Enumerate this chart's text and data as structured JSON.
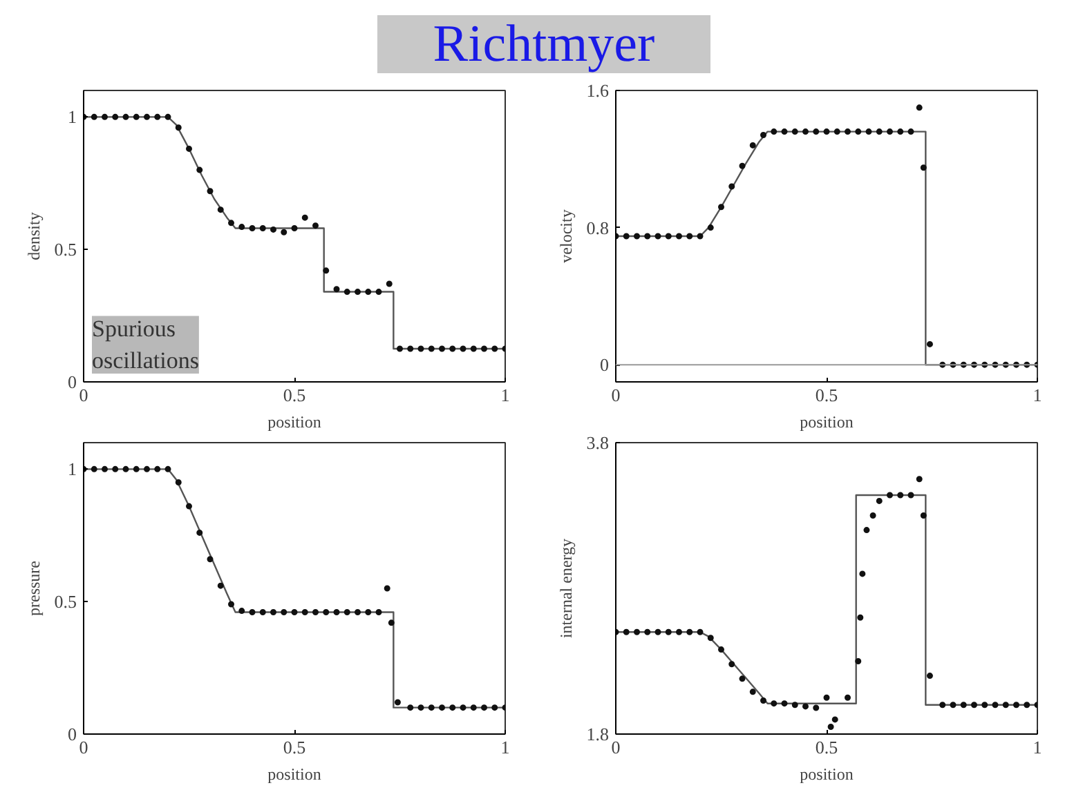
{
  "chart_data": [
    {
      "type": "line",
      "title": "Richtmyer",
      "xlabel": "position",
      "ylabel": "density",
      "xlim": [
        0,
        1
      ],
      "ylim": [
        0,
        1.1
      ],
      "xticks": [
        0,
        0.5,
        1
      ],
      "yticks": [
        0,
        0.5,
        1
      ],
      "grid": false,
      "annotations": [
        "Spurious oscillations"
      ],
      "series": [
        {
          "color": "#555555",
          "x": [
            0,
            0.2,
            0.22,
            0.25,
            0.28,
            0.31,
            0.34,
            0.36,
            0.57,
            0.57,
            0.735,
            0.735,
            1
          ],
          "values": [
            1,
            1,
            0.97,
            0.88,
            0.78,
            0.69,
            0.62,
            0.58,
            0.58,
            0.34,
            0.34,
            0.125,
            0.125
          ]
        },
        {
          "type": "scatter",
          "marker": "circle",
          "color": "#111111",
          "x": [
            0,
            0.025,
            0.05,
            0.075,
            0.1,
            0.125,
            0.15,
            0.175,
            0.2,
            0.225,
            0.25,
            0.275,
            0.3,
            0.325,
            0.35,
            0.375,
            0.4,
            0.425,
            0.45,
            0.475,
            0.5,
            0.525,
            0.55,
            0.575,
            0.6,
            0.625,
            0.65,
            0.675,
            0.7,
            0.725,
            0.75,
            0.775,
            0.8,
            0.825,
            0.85,
            0.875,
            0.9,
            0.925,
            0.95,
            0.975,
            1
          ],
          "values": [
            1,
            1,
            1,
            1,
            1,
            1,
            1,
            1,
            1,
            0.96,
            0.88,
            0.8,
            0.72,
            0.65,
            0.6,
            0.585,
            0.58,
            0.58,
            0.575,
            0.565,
            0.58,
            0.62,
            0.59,
            0.42,
            0.35,
            0.34,
            0.34,
            0.34,
            0.34,
            0.37,
            0.125,
            0.125,
            0.125,
            0.125,
            0.125,
            0.125,
            0.125,
            0.125,
            0.125,
            0.125,
            0.125
          ]
        }
      ]
    },
    {
      "type": "line",
      "xlabel": "position",
      "ylabel": "velocity",
      "xlim": [
        0,
        1
      ],
      "ylim": [
        -0.1,
        1.6
      ],
      "xticks": [
        0,
        0.5,
        1
      ],
      "yticks": [
        0,
        0.8,
        1.6
      ],
      "grid": false,
      "ref_lines": [
        {
          "axis": "y",
          "value": 0,
          "color": "#999999"
        }
      ],
      "series": [
        {
          "color": "#555555",
          "x": [
            0,
            0.2,
            0.22,
            0.25,
            0.28,
            0.31,
            0.34,
            0.36,
            0.735,
            0.735,
            1
          ],
          "values": [
            0.75,
            0.75,
            0.8,
            0.92,
            1.05,
            1.18,
            1.3,
            1.36,
            1.36,
            0,
            0
          ]
        },
        {
          "type": "scatter",
          "marker": "circle",
          "color": "#111111",
          "x": [
            0,
            0.025,
            0.05,
            0.075,
            0.1,
            0.125,
            0.15,
            0.175,
            0.2,
            0.225,
            0.25,
            0.275,
            0.3,
            0.325,
            0.35,
            0.375,
            0.4,
            0.425,
            0.45,
            0.475,
            0.5,
            0.525,
            0.55,
            0.575,
            0.6,
            0.625,
            0.65,
            0.675,
            0.7,
            0.72,
            0.73,
            0.745,
            0.775,
            0.8,
            0.825,
            0.85,
            0.875,
            0.9,
            0.925,
            0.95,
            0.975,
            1
          ],
          "values": [
            0.75,
            0.75,
            0.75,
            0.75,
            0.75,
            0.75,
            0.75,
            0.75,
            0.75,
            0.8,
            0.92,
            1.04,
            1.16,
            1.28,
            1.34,
            1.36,
            1.36,
            1.36,
            1.36,
            1.36,
            1.36,
            1.36,
            1.36,
            1.36,
            1.36,
            1.36,
            1.36,
            1.36,
            1.36,
            1.5,
            1.15,
            0.12,
            0,
            0,
            0,
            0,
            0,
            0,
            0,
            0,
            0,
            0
          ]
        }
      ]
    },
    {
      "type": "line",
      "xlabel": "position",
      "ylabel": "pressure",
      "xlim": [
        0,
        1
      ],
      "ylim": [
        0,
        1.1
      ],
      "xticks": [
        0,
        0.5,
        1
      ],
      "yticks": [
        0,
        0.5,
        1
      ],
      "grid": false,
      "series": [
        {
          "color": "#555555",
          "x": [
            0,
            0.2,
            0.22,
            0.25,
            0.28,
            0.31,
            0.34,
            0.36,
            0.735,
            0.735,
            1
          ],
          "values": [
            1,
            1,
            0.96,
            0.86,
            0.75,
            0.64,
            0.53,
            0.46,
            0.46,
            0.1,
            0.1
          ]
        },
        {
          "type": "scatter",
          "marker": "circle",
          "color": "#111111",
          "x": [
            0,
            0.025,
            0.05,
            0.075,
            0.1,
            0.125,
            0.15,
            0.175,
            0.2,
            0.225,
            0.25,
            0.275,
            0.3,
            0.325,
            0.35,
            0.375,
            0.4,
            0.425,
            0.45,
            0.475,
            0.5,
            0.525,
            0.55,
            0.575,
            0.6,
            0.625,
            0.65,
            0.675,
            0.7,
            0.72,
            0.73,
            0.745,
            0.775,
            0.8,
            0.825,
            0.85,
            0.875,
            0.9,
            0.925,
            0.95,
            0.975,
            1
          ],
          "values": [
            1,
            1,
            1,
            1,
            1,
            1,
            1,
            1,
            1,
            0.95,
            0.86,
            0.76,
            0.66,
            0.56,
            0.49,
            0.465,
            0.46,
            0.46,
            0.46,
            0.46,
            0.46,
            0.46,
            0.46,
            0.46,
            0.46,
            0.46,
            0.46,
            0.46,
            0.46,
            0.55,
            0.42,
            0.12,
            0.1,
            0.1,
            0.1,
            0.1,
            0.1,
            0.1,
            0.1,
            0.1,
            0.1,
            0.1
          ]
        }
      ]
    },
    {
      "type": "line",
      "xlabel": "position",
      "ylabel": "internal energy",
      "xlim": [
        0,
        1
      ],
      "ylim": [
        1.8,
        3.8
      ],
      "xticks": [
        0,
        0.5,
        1
      ],
      "yticks": [
        1.8,
        3.8
      ],
      "grid": false,
      "series": [
        {
          "color": "#555555",
          "x": [
            0,
            0.2,
            0.22,
            0.25,
            0.28,
            0.31,
            0.34,
            0.36,
            0.57,
            0.57,
            0.735,
            0.735,
            1
          ],
          "values": [
            2.5,
            2.5,
            2.47,
            2.38,
            2.28,
            2.18,
            2.08,
            2.01,
            2.01,
            3.44,
            3.44,
            2.0,
            2.0
          ]
        },
        {
          "type": "scatter",
          "marker": "circle",
          "color": "#111111",
          "x": [
            0,
            0.025,
            0.05,
            0.075,
            0.1,
            0.125,
            0.15,
            0.175,
            0.2,
            0.225,
            0.25,
            0.275,
            0.3,
            0.325,
            0.35,
            0.375,
            0.4,
            0.425,
            0.45,
            0.475,
            0.5,
            0.51,
            0.52,
            0.55,
            0.575,
            0.58,
            0.585,
            0.595,
            0.61,
            0.625,
            0.65,
            0.675,
            0.7,
            0.72,
            0.73,
            0.745,
            0.775,
            0.8,
            0.825,
            0.85,
            0.875,
            0.9,
            0.925,
            0.95,
            0.975,
            1
          ],
          "values": [
            2.5,
            2.5,
            2.5,
            2.5,
            2.5,
            2.5,
            2.5,
            2.5,
            2.5,
            2.46,
            2.38,
            2.28,
            2.18,
            2.09,
            2.03,
            2.01,
            2.01,
            2.0,
            1.99,
            1.98,
            2.05,
            1.85,
            1.9,
            2.05,
            2.3,
            2.6,
            2.9,
            3.2,
            3.3,
            3.4,
            3.44,
            3.44,
            3.44,
            3.55,
            3.3,
            2.2,
            2.0,
            2.0,
            2.0,
            2.0,
            2.0,
            2.0,
            2.0,
            2.0,
            2.0,
            2.0
          ]
        }
      ]
    }
  ]
}
